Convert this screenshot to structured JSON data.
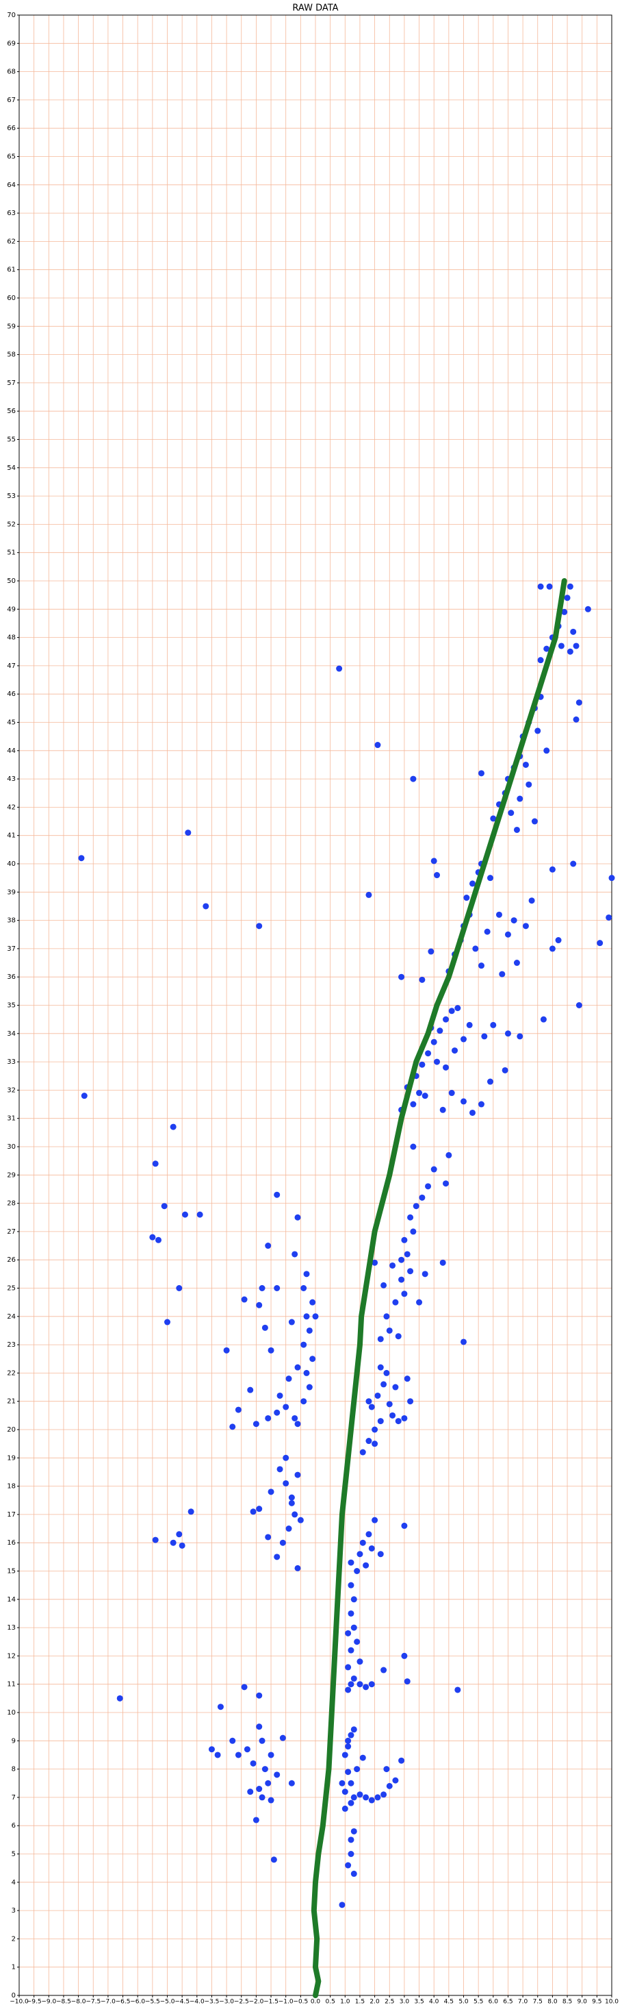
{
  "chart_data": {
    "type": "scatter",
    "title": "RAW DATA",
    "grid": true,
    "grid_color": "#f5b89a",
    "xlim": [
      -10,
      10
    ],
    "ylim": [
      0,
      70
    ],
    "xticks": [
      {
        "value": -10,
        "label": "−10.0"
      },
      {
        "value": -9.5,
        "label": "−9.5"
      },
      {
        "value": -9,
        "label": "−9.0"
      },
      {
        "value": -8.5,
        "label": "−8.5"
      },
      {
        "value": -8,
        "label": "−8.0"
      },
      {
        "value": -7.5,
        "label": "−7.5"
      },
      {
        "value": -7,
        "label": "−7.0"
      },
      {
        "value": -6.5,
        "label": "−6.5"
      },
      {
        "value": -6,
        "label": "−6.0"
      },
      {
        "value": -5.5,
        "label": "−5.5"
      },
      {
        "value": -5,
        "label": "−5.0"
      },
      {
        "value": -4.5,
        "label": "−4.5"
      },
      {
        "value": -4,
        "label": "−4.0"
      },
      {
        "value": -3.5,
        "label": "−3.5"
      },
      {
        "value": -3,
        "label": "−3.0"
      },
      {
        "value": -2.5,
        "label": "−2.5"
      },
      {
        "value": -2,
        "label": "−2.0"
      },
      {
        "value": -1.5,
        "label": "−1.5"
      },
      {
        "value": -1,
        "label": "−1.0"
      },
      {
        "value": -0.5,
        "label": "−0.5"
      },
      {
        "value": 0,
        "label": "0.0"
      },
      {
        "value": 0.5,
        "label": "0.5"
      },
      {
        "value": 1,
        "label": "1.0"
      },
      {
        "value": 1.5,
        "label": "1.5"
      },
      {
        "value": 2,
        "label": "2.0"
      },
      {
        "value": 2.5,
        "label": "2.5"
      },
      {
        "value": 3,
        "label": "3.0"
      },
      {
        "value": 3.5,
        "label": "3.5"
      },
      {
        "value": 4,
        "label": "4.0"
      },
      {
        "value": 4.5,
        "label": "4.5"
      },
      {
        "value": 5,
        "label": "5.0"
      },
      {
        "value": 5.5,
        "label": "5.5"
      },
      {
        "value": 6,
        "label": "6.0"
      },
      {
        "value": 6.5,
        "label": "6.5"
      },
      {
        "value": 7,
        "label": "7.0"
      },
      {
        "value": 7.5,
        "label": "7.5"
      },
      {
        "value": 8,
        "label": "8.0"
      },
      {
        "value": 8.5,
        "label": "8.5"
      },
      {
        "value": 9,
        "label": "9.0"
      },
      {
        "value": 9.5,
        "label": "9.5"
      },
      {
        "value": 10,
        "label": "10.0"
      }
    ],
    "yticks": [
      0,
      1,
      2,
      3,
      4,
      5,
      6,
      7,
      8,
      9,
      10,
      11,
      12,
      13,
      14,
      15,
      16,
      17,
      18,
      19,
      20,
      21,
      22,
      23,
      24,
      25,
      26,
      27,
      28,
      29,
      30,
      31,
      32,
      33,
      34,
      35,
      36,
      37,
      38,
      39,
      40,
      41,
      42,
      43,
      44,
      45,
      46,
      47,
      48,
      49,
      50,
      51,
      52,
      53,
      54,
      55,
      56,
      57,
      58,
      59,
      60,
      61,
      62,
      63,
      64,
      65,
      66,
      67,
      68,
      69,
      70
    ],
    "series": [
      {
        "mode": "markers",
        "color": "#1f3ff0",
        "x": [
          1.0,
          1.1,
          1.2,
          1.3,
          1.1,
          1.2,
          1.0,
          1.3,
          1.5,
          1.7,
          1.9,
          2.1,
          2.3,
          2.5,
          2.7,
          1.4,
          1.2,
          1.0,
          1.6,
          2.4,
          2.9,
          1.1,
          0.9,
          1.3,
          1.2,
          1.3,
          0.9,
          1.1,
          1.2,
          1.1,
          1.2,
          1.3,
          1.5,
          1.7,
          1.9,
          1.1,
          1.2,
          1.1,
          1.2,
          1.3,
          1.2,
          1.4,
          1.5,
          1.6,
          1.8,
          2.0,
          1.9,
          1.7,
          1.4,
          1.5,
          2.3,
          3.1,
          3.0,
          3.0,
          1.3,
          1.2,
          2.2,
          1.6,
          1.8,
          2.0,
          2.2,
          1.9,
          2.1,
          2.3,
          2.4,
          2.6,
          2.8,
          3.0,
          3.2,
          3.1,
          2.2,
          2.5,
          1.8,
          2.7,
          2.0,
          2.2,
          2.5,
          2.8,
          2.4,
          2.7,
          3.0,
          2.9,
          3.2,
          3.1,
          3.0,
          3.3,
          3.2,
          3.4,
          3.6,
          2.6,
          2.3,
          3.5,
          3.7,
          2.0,
          4.3,
          3.8,
          3.3,
          4.4,
          4.0,
          2.9,
          3.3,
          3.5,
          3.4,
          3.6,
          3.8,
          4.0,
          4.2,
          4.4,
          4.6,
          4.8,
          4.1,
          4.4,
          4.7,
          5.0,
          5.2,
          3.9,
          4.3,
          4.6,
          5.0,
          5.3,
          5.6,
          5.9,
          5.7,
          6.0,
          6.5,
          6.9,
          6.4,
          2.9,
          3.1,
          3.7,
          4.5,
          4.7,
          4.9,
          5.0,
          5.2,
          5.1,
          5.3,
          5.5,
          5.6,
          5.4,
          5.6,
          5.8,
          6.2,
          6.5,
          6.7,
          7.1,
          7.3,
          6.8,
          6.3,
          5.9,
          4.0,
          4.1,
          3.9,
          3.6,
          8.0,
          8.2,
          8.0,
          6.0,
          6.2,
          6.4,
          6.5,
          6.7,
          6.9,
          7.0,
          7.2,
          7.4,
          7.6,
          6.6,
          6.9,
          7.2,
          7.1,
          7.5,
          7.8,
          6.8,
          7.4,
          5.6,
          8.8,
          8.9,
          7.6,
          7.8,
          8.0,
          8.2,
          8.4,
          8.5,
          8.6,
          8.3,
          8.6,
          8.8,
          7.9,
          7.6,
          8.7,
          9.2,
          -1.6,
          -1.3,
          -1.0,
          -0.7,
          -0.4,
          -0.2,
          -0.3,
          -0.1,
          -0.4,
          -0.2,
          -0.3,
          -0.1,
          -0.4,
          -0.3,
          0.0,
          -0.6,
          -0.9,
          -1.2,
          -1.5,
          -1.7,
          -1.9,
          -2.4,
          -1.8,
          -1.3,
          -0.8,
          -2.0,
          -2.6,
          -2.8,
          -3.0,
          -1.6,
          -1.3,
          -0.6,
          -0.7,
          -2.2,
          -0.6,
          -1.3,
          -1.1,
          -0.9,
          -0.7,
          -0.8,
          -1.0,
          -1.2,
          -1.0,
          -0.6,
          -0.5,
          -0.6,
          -1.6,
          -1.9,
          -1.5,
          -2.1,
          -0.8,
          -2.0,
          -1.8,
          -1.6,
          -1.7,
          -1.5,
          -1.8,
          -2.1,
          -2.3,
          -1.9,
          -1.9,
          -1.5,
          -1.9,
          -1.1,
          -1.3,
          -2.6,
          -2.8,
          -3.5,
          -3.3,
          -2.4,
          -3.2,
          -1.4,
          -0.8,
          -2.2,
          -7.9,
          -7.8,
          -4.3,
          -3.7,
          -1.9,
          0.8,
          2.1,
          3.3,
          -5.4,
          -4.8,
          -5.1,
          -4.4,
          -3.9,
          -5.5,
          -5.3,
          -4.6,
          -5.0,
          -6.6,
          4.8,
          5.0,
          9.9,
          10.0,
          9.6,
          8.9,
          7.7,
          -4.8,
          -4.6,
          -4.5,
          -5.4,
          -4.2,
          1.8,
          2.9,
          4.5,
          8.7
        ],
        "y": [
          8.5,
          8.8,
          9.2,
          9.4,
          7.9,
          7.5,
          7.2,
          7.0,
          7.1,
          7.0,
          6.9,
          7.0,
          7.1,
          7.4,
          7.6,
          8.0,
          6.8,
          6.6,
          8.4,
          8.0,
          8.3,
          9.0,
          7.5,
          5.8,
          5.0,
          4.3,
          3.2,
          4.6,
          5.5,
          10.8,
          11.0,
          11.2,
          11.0,
          10.9,
          11.0,
          11.6,
          12.2,
          12.8,
          13.5,
          14.0,
          14.5,
          15.0,
          15.6,
          16.0,
          16.3,
          16.8,
          15.8,
          15.2,
          12.5,
          11.8,
          11.5,
          11.1,
          12.0,
          16.6,
          13.0,
          15.3,
          15.6,
          19.2,
          19.6,
          20.0,
          20.3,
          20.8,
          21.2,
          21.6,
          22.0,
          20.5,
          20.3,
          20.4,
          21.0,
          21.8,
          22.2,
          20.9,
          21.0,
          21.5,
          19.5,
          23.2,
          23.5,
          23.3,
          24.0,
          24.5,
          24.8,
          25.3,
          25.6,
          26.2,
          26.7,
          27.0,
          27.5,
          27.9,
          28.2,
          25.8,
          25.1,
          24.5,
          25.5,
          25.9,
          25.9,
          28.6,
          30.0,
          28.7,
          29.2,
          26.0,
          31.5,
          31.9,
          32.5,
          32.9,
          33.3,
          33.7,
          34.1,
          34.5,
          34.8,
          34.9,
          33.0,
          32.8,
          33.4,
          33.8,
          34.3,
          34.2,
          31.3,
          31.9,
          31.6,
          31.2,
          31.5,
          32.3,
          33.9,
          34.3,
          34.0,
          33.9,
          32.7,
          31.3,
          32.1,
          31.8,
          36.2,
          36.8,
          37.3,
          37.8,
          38.2,
          38.8,
          39.3,
          39.7,
          40.0,
          37.0,
          36.4,
          37.6,
          38.2,
          37.5,
          38.0,
          37.8,
          38.7,
          36.5,
          36.1,
          39.5,
          40.1,
          39.6,
          36.9,
          35.9,
          39.8,
          37.3,
          37.0,
          41.6,
          42.1,
          42.5,
          43.0,
          43.4,
          43.8,
          44.5,
          45.0,
          45.5,
          45.9,
          41.8,
          42.3,
          42.8,
          43.5,
          44.7,
          44.0,
          41.2,
          41.5,
          43.2,
          45.1,
          45.7,
          47.2,
          47.6,
          48.0,
          48.4,
          48.9,
          49.4,
          49.8,
          47.7,
          47.5,
          47.7,
          49.8,
          49.8,
          48.2,
          49.0,
          20.4,
          20.6,
          20.8,
          20.4,
          21.0,
          21.5,
          22.0,
          22.5,
          23.0,
          23.5,
          24.0,
          24.5,
          25.0,
          25.5,
          24.0,
          22.2,
          21.8,
          21.2,
          22.8,
          23.6,
          24.4,
          24.6,
          25.0,
          25.0,
          23.8,
          20.2,
          20.7,
          20.1,
          22.8,
          26.5,
          28.3,
          27.5,
          26.2,
          21.4,
          20.2,
          15.5,
          16.0,
          16.5,
          17.0,
          17.6,
          18.1,
          18.6,
          19.0,
          18.4,
          16.8,
          15.1,
          16.2,
          17.2,
          17.8,
          17.1,
          17.4,
          6.2,
          7.0,
          7.5,
          8.0,
          8.5,
          9.0,
          8.2,
          8.7,
          9.5,
          10.6,
          6.9,
          7.3,
          9.1,
          7.8,
          8.5,
          9.0,
          8.7,
          8.5,
          10.9,
          10.2,
          4.8,
          7.5,
          7.2,
          40.2,
          31.8,
          41.1,
          38.5,
          37.8,
          46.9,
          44.2,
          43.0,
          29.4,
          30.7,
          27.9,
          27.6,
          27.6,
          26.8,
          26.7,
          25.0,
          23.8,
          10.5,
          10.8,
          23.1,
          38.1,
          39.5,
          37.2,
          35.0,
          34.5,
          16.0,
          16.3,
          15.9,
          16.1,
          17.1,
          38.9,
          36.0,
          29.7,
          40.0
        ]
      },
      {
        "mode": "line",
        "color": "#1e7a28",
        "x": [
          0,
          0.1,
          0.0,
          0.05,
          -0.05,
          0.0,
          0.1,
          0.25,
          0.35,
          0.45,
          0.5,
          0.55,
          0.6,
          0.65,
          0.7,
          0.75,
          0.8,
          0.85,
          0.9,
          1.0,
          1.1,
          1.2,
          1.3,
          1.4,
          1.5,
          1.55,
          1.7,
          1.85,
          2.0,
          2.25,
          2.5,
          2.7,
          2.9,
          3.15,
          3.4,
          3.8,
          4.1,
          4.5,
          4.8,
          5.1,
          5.4,
          5.7,
          6.0,
          6.3,
          6.6,
          6.9,
          7.2,
          7.5,
          7.8,
          8.1,
          8.4
        ],
        "y": [
          0,
          0.5,
          1,
          2,
          3,
          4,
          5,
          6,
          7,
          8,
          9,
          10,
          11,
          12,
          13,
          14,
          15,
          16,
          17,
          18,
          19,
          20,
          21,
          22,
          23,
          24,
          25,
          26,
          27,
          28,
          29,
          30,
          31,
          32,
          33,
          34,
          35,
          36,
          37,
          38,
          39,
          40,
          41,
          42,
          43,
          44,
          45,
          46,
          47,
          48,
          50
        ]
      }
    ]
  }
}
